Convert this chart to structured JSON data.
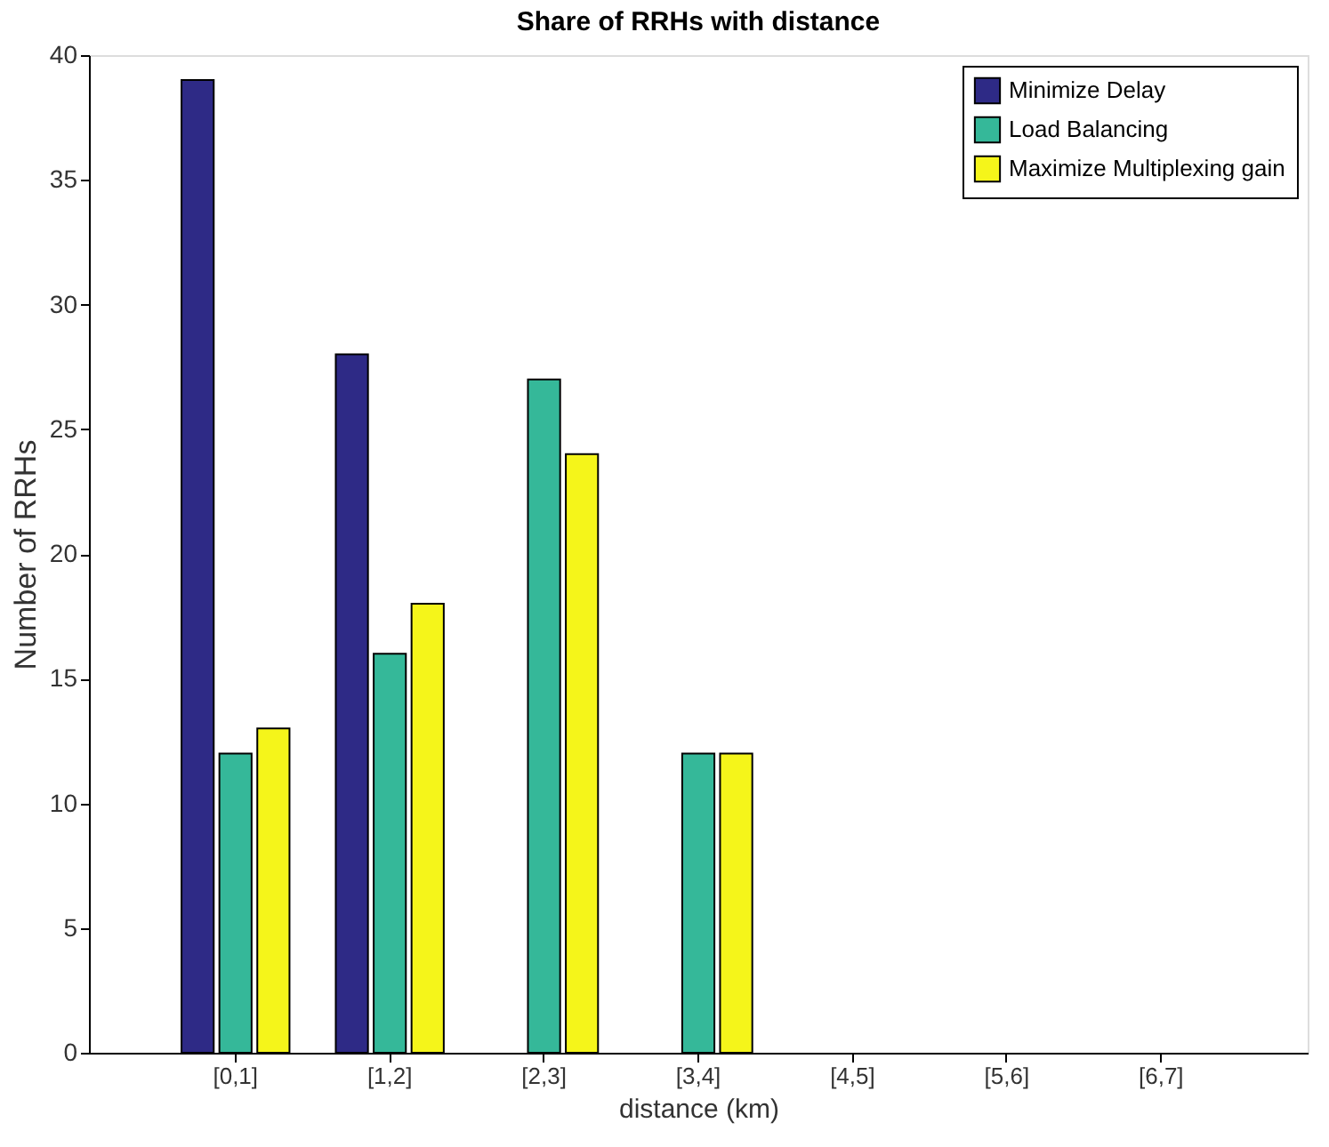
{
  "chart_data": {
    "type": "bar",
    "title": "Share of RRHs with distance",
    "xlabel": "distance (km)",
    "ylabel": "Number of RRHs",
    "categories": [
      "[0,1]",
      "[1,2]",
      "[2,3]",
      "[3,4]",
      "[4,5]",
      "[5,6]",
      "[6,7]"
    ],
    "series": [
      {
        "name": "Minimize Delay",
        "color": "#2e2a86",
        "values": [
          39,
          28,
          0,
          0,
          0,
          0,
          0
        ]
      },
      {
        "name": "Load Balancing",
        "color": "#35b899",
        "values": [
          12,
          16,
          27,
          12,
          0,
          0,
          0
        ]
      },
      {
        "name": "Maximize Multiplexing gain",
        "color": "#f5f51a",
        "values": [
          13,
          18,
          24,
          12,
          0,
          0,
          0
        ]
      }
    ],
    "ylim": [
      0,
      40
    ],
    "yticks": [
      0,
      5,
      10,
      15,
      20,
      25,
      30,
      35,
      40
    ],
    "grid": false,
    "legend": "top right"
  }
}
